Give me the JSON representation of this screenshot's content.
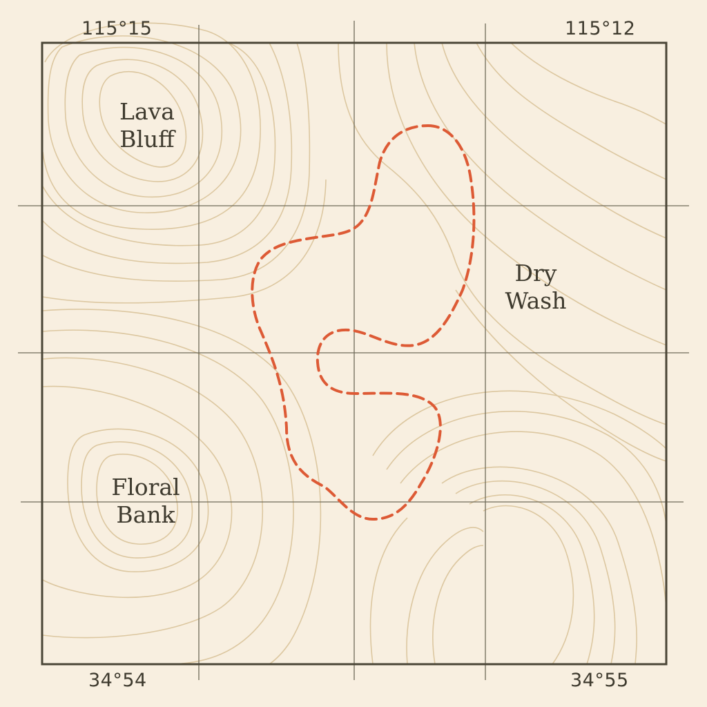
{
  "map": {
    "corner_labels": {
      "top_left": "115°15",
      "top_right": "115°12",
      "bottom_left": "34°54",
      "bottom_right": "34°55"
    },
    "places": [
      {
        "line1": "Lava",
        "line2": "Bluff"
      },
      {
        "line1": "Dry",
        "line2": "Wash"
      },
      {
        "line1": "Floral",
        "line2": "Bank"
      }
    ],
    "colors": {
      "paper": "#f8efe0",
      "frame": "#4a4536",
      "grid": "#6e6a58",
      "contour": "#dcc7a0",
      "route": "#dd5a35",
      "text": "#3e3a2e"
    },
    "route_style": "dashed"
  }
}
